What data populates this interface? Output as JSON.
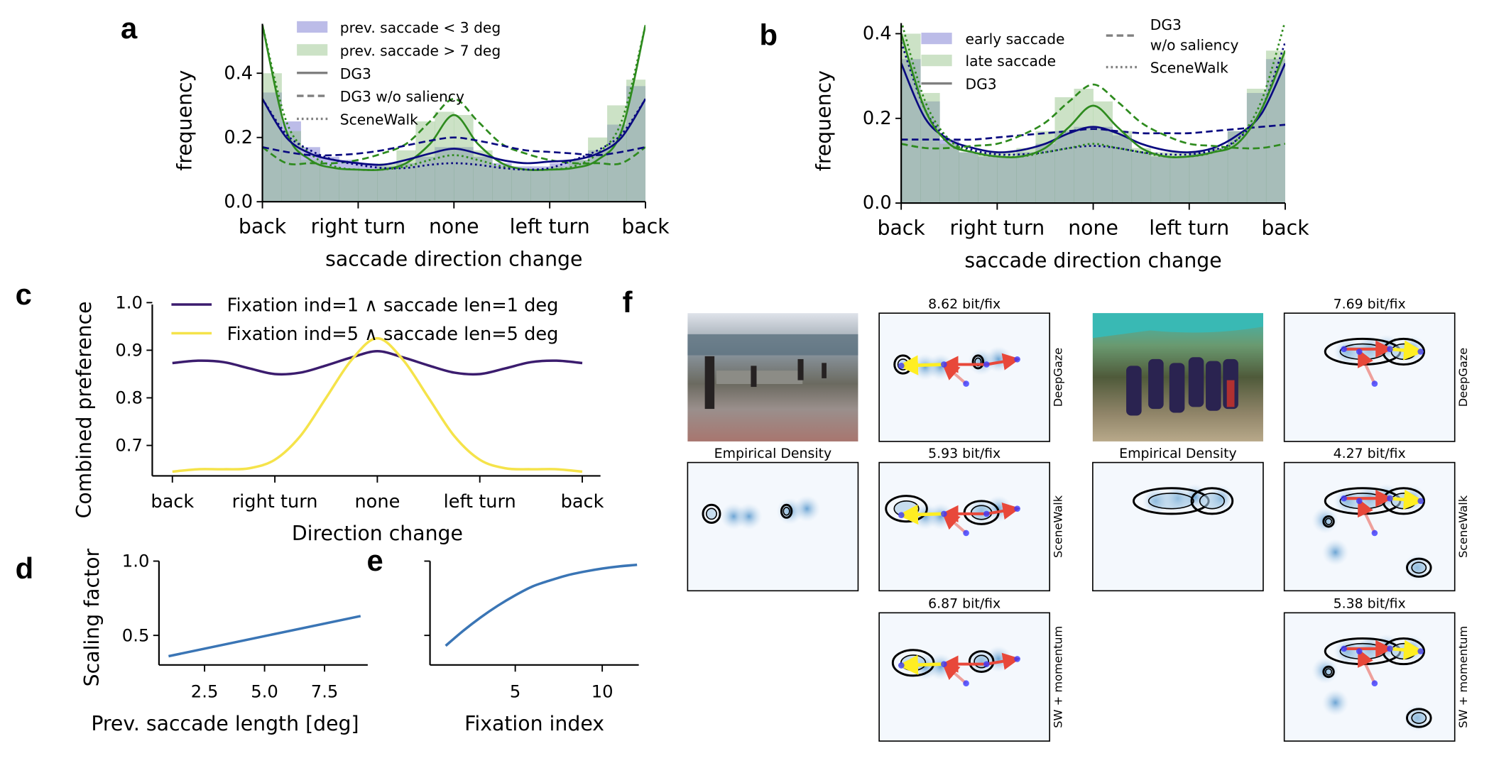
{
  "panel_letters": [
    "a",
    "b",
    "c",
    "d",
    "e",
    "f"
  ],
  "chart_data": [
    {
      "id": "a",
      "type": "line",
      "xlabel": "saccade direction change",
      "ylabel": "frequency",
      "x_tick_labels": [
        "back",
        "right turn",
        "none",
        "left turn",
        "back"
      ],
      "y_ticks": [
        0.0,
        0.2,
        0.4
      ],
      "y_tick_labels": [
        "0.0",
        "0.2",
        "0.4"
      ],
      "ylim": [
        0,
        0.554
      ],
      "legend_position": "top",
      "histograms": [
        {
          "name": "prev. saccade < 3 deg",
          "color": "#6a6acd",
          "values": [
            0.34,
            0.25,
            0.17,
            0.14,
            0.13,
            0.12,
            0.11,
            0.12,
            0.14,
            0.17,
            0.17,
            0.14,
            0.12,
            0.11,
            0.11,
            0.12,
            0.13,
            0.16,
            0.24,
            0.36
          ]
        },
        {
          "name": "prev. saccade > 7 deg",
          "color": "#8fbf80",
          "values": [
            0.4,
            0.22,
            0.13,
            0.11,
            0.1,
            0.1,
            0.12,
            0.16,
            0.25,
            0.28,
            0.27,
            0.16,
            0.11,
            0.1,
            0.1,
            0.11,
            0.13,
            0.2,
            0.3,
            0.38
          ]
        }
      ],
      "legend_lines": [
        {
          "name": "DG3",
          "dash": "solid"
        },
        {
          "name": "DG3 w/o saliency",
          "dash": "dashed"
        },
        {
          "name": "SceneWalk",
          "dash": "dotted"
        }
      ],
      "series": [
        {
          "model": "DG3",
          "group": "prev. saccade > 7 deg",
          "color": "#2e8b1e",
          "dash": "solid",
          "values": [
            0.55,
            0.22,
            0.13,
            0.105,
            0.1,
            0.1,
            0.12,
            0.18,
            0.27,
            0.18,
            0.12,
            0.1,
            0.1,
            0.105,
            0.13,
            0.22,
            0.55
          ]
        },
        {
          "model": "DG3 w/o saliency",
          "group": "prev. saccade > 7 deg",
          "color": "#2e8b1e",
          "dash": "dashed",
          "values": [
            0.17,
            0.12,
            0.12,
            0.12,
            0.13,
            0.15,
            0.18,
            0.25,
            0.32,
            0.25,
            0.18,
            0.15,
            0.13,
            0.12,
            0.12,
            0.12,
            0.17
          ]
        },
        {
          "model": "SceneWalk",
          "group": "prev. saccade > 7 deg",
          "color": "#2e8b1e",
          "dash": "dotted",
          "values": [
            0.55,
            0.25,
            0.15,
            0.11,
            0.1,
            0.1,
            0.11,
            0.13,
            0.145,
            0.13,
            0.11,
            0.1,
            0.1,
            0.11,
            0.15,
            0.25,
            0.55
          ]
        },
        {
          "model": "DG3",
          "group": "prev. saccade < 3 deg",
          "color": "#0a0a80",
          "dash": "solid",
          "values": [
            0.32,
            0.2,
            0.15,
            0.13,
            0.12,
            0.115,
            0.13,
            0.15,
            0.165,
            0.15,
            0.13,
            0.12,
            0.125,
            0.13,
            0.15,
            0.2,
            0.32
          ]
        },
        {
          "model": "DG3 w/o saliency",
          "group": "prev. saccade < 3 deg",
          "color": "#0a0a80",
          "dash": "dashed",
          "values": [
            0.17,
            0.155,
            0.145,
            0.145,
            0.15,
            0.16,
            0.175,
            0.19,
            0.2,
            0.19,
            0.175,
            0.16,
            0.155,
            0.15,
            0.145,
            0.155,
            0.17
          ]
        },
        {
          "model": "SceneWalk",
          "group": "prev. saccade < 3 deg",
          "color": "#0a0a80",
          "dash": "dotted",
          "values": [
            0.32,
            0.21,
            0.16,
            0.13,
            0.115,
            0.105,
            0.105,
            0.115,
            0.12,
            0.115,
            0.105,
            0.1,
            0.105,
            0.13,
            0.16,
            0.21,
            0.32
          ]
        }
      ]
    },
    {
      "id": "b",
      "type": "line",
      "xlabel": "saccade direction change",
      "ylabel": "frequency",
      "x_tick_labels": [
        "back",
        "right turn",
        "none",
        "left turn",
        "back"
      ],
      "y_ticks": [
        0.0,
        0.2,
        0.4
      ],
      "y_tick_labels": [
        "0.0",
        "0.2",
        "0.4"
      ],
      "ylim": [
        0,
        0.425
      ],
      "legend_position": "top",
      "histograms": [
        {
          "name": "early saccade",
          "color": "#6a6acd",
          "values": [
            0.34,
            0.24,
            0.15,
            0.12,
            0.11,
            0.11,
            0.12,
            0.14,
            0.17,
            0.18,
            0.18,
            0.16,
            0.12,
            0.11,
            0.11,
            0.12,
            0.13,
            0.17,
            0.26,
            0.34
          ]
        },
        {
          "name": "late saccade",
          "color": "#8fbf80",
          "values": [
            0.4,
            0.26,
            0.14,
            0.12,
            0.12,
            0.12,
            0.13,
            0.17,
            0.25,
            0.27,
            0.24,
            0.17,
            0.13,
            0.12,
            0.12,
            0.12,
            0.13,
            0.17,
            0.27,
            0.36
          ]
        }
      ],
      "legend_lines": [
        {
          "name": "DG3",
          "dash": "solid"
        },
        {
          "name": "DG3",
          "name2": "w/o saliency",
          "dash": "dashed"
        },
        {
          "name": "SceneWalk",
          "dash": "dotted"
        }
      ],
      "series": [
        {
          "model": "DG3",
          "group": "early saccade",
          "color": "#0a0a80",
          "dash": "solid",
          "values": [
            0.33,
            0.2,
            0.15,
            0.13,
            0.12,
            0.125,
            0.14,
            0.165,
            0.18,
            0.165,
            0.14,
            0.125,
            0.12,
            0.13,
            0.16,
            0.21,
            0.33
          ]
        },
        {
          "model": "DG3 w/o saliency",
          "group": "early saccade",
          "color": "#0a0a80",
          "dash": "dashed",
          "values": [
            0.15,
            0.15,
            0.15,
            0.15,
            0.155,
            0.16,
            0.165,
            0.17,
            0.175,
            0.17,
            0.165,
            0.165,
            0.165,
            0.17,
            0.175,
            0.18,
            0.185
          ]
        },
        {
          "model": "SceneWalk",
          "group": "early saccade",
          "color": "#0a0a80",
          "dash": "dotted",
          "values": [
            0.38,
            0.22,
            0.15,
            0.125,
            0.115,
            0.115,
            0.12,
            0.13,
            0.135,
            0.13,
            0.12,
            0.115,
            0.115,
            0.125,
            0.15,
            0.22,
            0.38
          ]
        },
        {
          "model": "DG3",
          "group": "late saccade",
          "color": "#2e8b1e",
          "dash": "solid",
          "values": [
            0.4,
            0.22,
            0.14,
            0.12,
            0.11,
            0.11,
            0.13,
            0.18,
            0.23,
            0.18,
            0.13,
            0.11,
            0.11,
            0.12,
            0.14,
            0.22,
            0.36
          ]
        },
        {
          "model": "DG3 w/o saliency",
          "group": "late saccade",
          "color": "#2e8b1e",
          "dash": "dashed",
          "values": [
            0.14,
            0.13,
            0.13,
            0.135,
            0.14,
            0.16,
            0.19,
            0.24,
            0.28,
            0.24,
            0.19,
            0.16,
            0.14,
            0.135,
            0.13,
            0.13,
            0.14
          ]
        },
        {
          "model": "SceneWalk",
          "group": "late saccade",
          "color": "#2e8b1e",
          "dash": "dotted",
          "values": [
            0.43,
            0.24,
            0.15,
            0.12,
            0.11,
            0.11,
            0.12,
            0.13,
            0.14,
            0.13,
            0.12,
            0.11,
            0.11,
            0.12,
            0.15,
            0.24,
            0.43
          ]
        }
      ]
    },
    {
      "id": "c",
      "type": "line",
      "xlabel": "Direction change",
      "ylabel": "Combined preference",
      "x_tick_labels": [
        "back",
        "right turn",
        "none",
        "left turn",
        "back"
      ],
      "y_ticks": [
        0.7,
        0.8,
        0.9,
        1.0
      ],
      "y_tick_labels": [
        "0.7",
        "0.8",
        "0.9",
        "1.0"
      ],
      "ylim": [
        0.636,
        1.0
      ],
      "legend_position": "top",
      "series": [
        {
          "name": "Fixation ind=1 ∧ saccade len=1 deg",
          "color": "#3b1c6e",
          "values": [
            0.873,
            0.878,
            0.875,
            0.862,
            0.85,
            0.853,
            0.868,
            0.885,
            0.898,
            0.885,
            0.868,
            0.853,
            0.85,
            0.862,
            0.875,
            0.878,
            0.873
          ]
        },
        {
          "name": "Fixation ind=5 ∧ saccade len=5 deg",
          "color": "#f5e34a",
          "values": [
            0.645,
            0.65,
            0.65,
            0.652,
            0.67,
            0.72,
            0.8,
            0.88,
            0.925,
            0.88,
            0.8,
            0.72,
            0.67,
            0.652,
            0.65,
            0.65,
            0.645
          ]
        }
      ]
    },
    {
      "id": "d",
      "type": "line",
      "xlabel": "Prev. saccade length [deg]",
      "ylabel": "Scaling factor",
      "x_ticks": [
        2.5,
        5.0,
        7.5
      ],
      "x_tick_labels": [
        "2.5",
        "5.0",
        "7.5"
      ],
      "y_ticks": [
        0.5,
        1.0
      ],
      "y_tick_labels": [
        "0.5",
        "1.0"
      ],
      "xlim": [
        0.6,
        9.3
      ],
      "ylim": [
        0.29,
        1.0
      ],
      "series": [
        {
          "color": "#3a75b5",
          "x": [
            1,
            9
          ],
          "y": [
            0.36,
            0.63
          ]
        }
      ]
    },
    {
      "id": "e",
      "type": "line",
      "xlabel": "Fixation index",
      "ylabel": "",
      "x_ticks": [
        5,
        10
      ],
      "x_tick_labels": [
        "5",
        "10"
      ],
      "y_ticks": [
        0.5,
        1.0
      ],
      "y_tick_labels": [
        "",
        ""
      ],
      "xlim": [
        0.1,
        12.1
      ],
      "ylim": [
        0.29,
        1.0
      ],
      "series": [
        {
          "color": "#3a75b5",
          "x": [
            1,
            2,
            3,
            4,
            5,
            6,
            7,
            8,
            9,
            10,
            11,
            12
          ],
          "y": [
            0.43,
            0.53,
            0.62,
            0.7,
            0.77,
            0.83,
            0.87,
            0.905,
            0.93,
            0.95,
            0.965,
            0.975
          ]
        }
      ]
    }
  ],
  "panel_f": {
    "row_labels": [
      "DeepGaze",
      "SceneWalk",
      "SW + momentum"
    ],
    "groups": [
      {
        "empirical_title": "Empirical Density",
        "scores": [
          "8.62 bit/fix",
          "5.93 bit/fix",
          "6.87 bit/fix"
        ]
      },
      {
        "empirical_title": "Empirical Density",
        "scores": [
          "7.69 bit/fix",
          "4.27 bit/fix",
          "5.38 bit/fix"
        ]
      }
    ]
  }
}
